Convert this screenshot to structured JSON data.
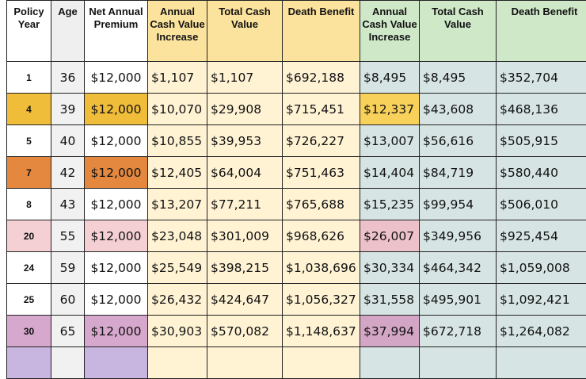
{
  "headers": [
    "Policy Year",
    "Age",
    "Net Annual Premium",
    "Annual Cash Value Increase",
    "Total Cash Value",
    "Death Benefit",
    "Annual Cash Value Increase",
    "Total Cash Value",
    "Death Benefit"
  ],
  "rows": [
    {
      "year": "1",
      "age": "36",
      "premium": "$12,000",
      "a_increase": "$1,107",
      "a_total": "$1,107",
      "a_death": "$692,188",
      "b_increase": "$8,495",
      "b_total": "$8,495",
      "b_death": "$352,704",
      "hl_color": ""
    },
    {
      "year": "4",
      "age": "39",
      "premium": "$12,000",
      "a_increase": "$10,070",
      "a_total": "$29,908",
      "a_death": "$715,451",
      "b_increase": "$12,337",
      "b_total": "$43,608",
      "b_death": "$468,136",
      "hl_color": "#f0bd3a",
      "b_hl_color": "#f8d15a"
    },
    {
      "year": "5",
      "age": "40",
      "premium": "$12,000",
      "a_increase": "$10,855",
      "a_total": "$39,953",
      "a_death": "$726,227",
      "b_increase": "$13,007",
      "b_total": "$56,616",
      "b_death": "$505,915",
      "hl_color": ""
    },
    {
      "year": "7",
      "age": "42",
      "premium": "$12,000",
      "a_increase": "$12,405",
      "a_total": "$64,004",
      "a_death": "$751,463",
      "b_increase": "$14,404",
      "b_total": "$84,719",
      "b_death": "$580,440",
      "hl_color": "#e3883e"
    },
    {
      "year": "8",
      "age": "43",
      "premium": "$12,000",
      "a_increase": "$13,207",
      "a_total": "$77,211",
      "a_death": "$765,688",
      "b_increase": "$15,235",
      "b_total": "$99,954",
      "b_death": "$506,010",
      "hl_color": ""
    },
    {
      "year": "20",
      "age": "55",
      "premium": "$12,000",
      "a_increase": "$23,048",
      "a_total": "$301,009",
      "a_death": "$968,626",
      "b_increase": "$26,007",
      "b_total": "$349,956",
      "b_death": "$925,454",
      "hl_color": "#f4cfd3",
      "b_hl_color": "#ecc1c9"
    },
    {
      "year": "24",
      "age": "59",
      "premium": "$12,000",
      "a_increase": "$25,549",
      "a_total": "$398,215",
      "a_death": "$1,038,696",
      "b_increase": "$30,334",
      "b_total": "$464,342",
      "b_death": "$1,059,008",
      "hl_color": ""
    },
    {
      "year": "25",
      "age": "60",
      "premium": "$12,000",
      "a_increase": "$26,432",
      "a_total": "$424,647",
      "a_death": "$1,056,327",
      "b_increase": "$31,558",
      "b_total": "$495,901",
      "b_death": "$1,092,421",
      "hl_color": ""
    },
    {
      "year": "30",
      "age": "65",
      "premium": "$12,000",
      "a_increase": "$30,903",
      "a_total": "$570,082",
      "a_death": "$1,148,637",
      "b_increase": "$37,994",
      "b_total": "$672,718",
      "b_death": "$1,264,082",
      "hl_color": "#d7a8cd",
      "b_hl_color": "#d4a6c6"
    }
  ],
  "colors": {
    "header_a": "#fce39d",
    "header_b": "#cfe8c8",
    "body_a": "#fff3d4",
    "body_b": "#d7e4e4",
    "age_col": "#f1f1f1",
    "partial_row": "#c9b6e0"
  }
}
